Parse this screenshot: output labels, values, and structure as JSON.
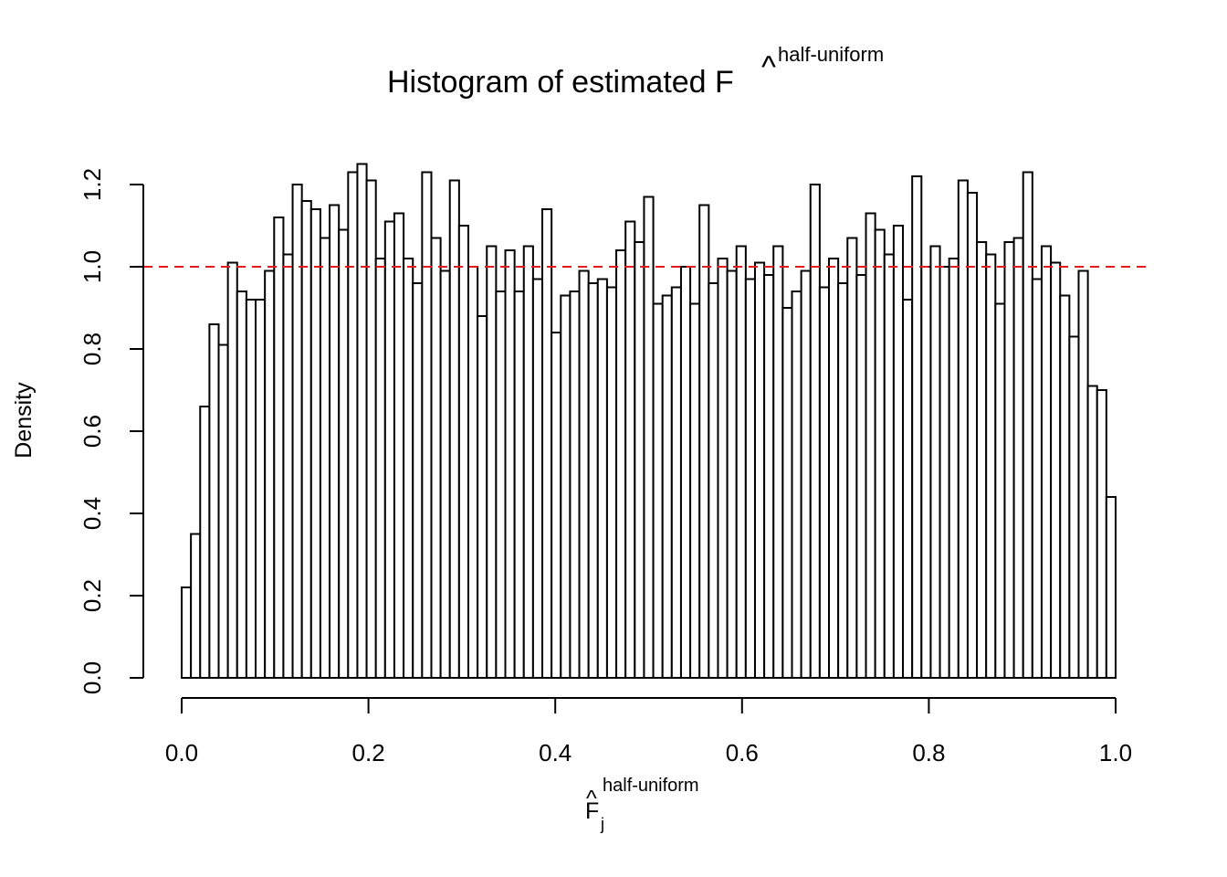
{
  "chart_data": {
    "type": "bar",
    "title": {
      "main": "Histogram of estimated F",
      "hat": "^",
      "superscript": "half-uniform"
    },
    "xlabel": {
      "symbol": "F",
      "hat": "^",
      "subscript": "j",
      "superscript": "half-uniform"
    },
    "ylabel": "Density",
    "xlim": [
      0,
      1
    ],
    "ylim": [
      0,
      1.25
    ],
    "x_ticks": [
      "0.0",
      "0.2",
      "0.4",
      "0.6",
      "0.8",
      "1.0"
    ],
    "y_ticks": [
      "0.0",
      "0.2",
      "0.4",
      "0.6",
      "0.8",
      "1.0",
      "1.2"
    ],
    "bin_width": 0.01,
    "values": [
      0.22,
      0.35,
      0.66,
      0.86,
      0.81,
      1.01,
      0.94,
      0.92,
      0.92,
      0.99,
      1.12,
      1.03,
      1.2,
      1.16,
      1.14,
      1.07,
      1.15,
      1.09,
      1.23,
      1.25,
      1.21,
      1.02,
      1.11,
      1.13,
      1.02,
      0.96,
      1.23,
      1.07,
      0.99,
      1.21,
      1.1,
      1.0,
      0.88,
      1.05,
      0.94,
      1.04,
      0.94,
      1.05,
      0.97,
      1.14,
      0.84,
      0.93,
      0.94,
      0.99,
      0.96,
      0.97,
      0.95,
      1.04,
      1.11,
      1.06,
      1.17,
      0.91,
      0.93,
      0.95,
      1.0,
      0.91,
      1.15,
      0.96,
      1.02,
      0.99,
      1.05,
      0.97,
      1.01,
      0.98,
      1.05,
      0.9,
      0.94,
      0.99,
      1.2,
      0.95,
      1.02,
      0.96,
      1.07,
      0.98,
      1.13,
      1.09,
      1.03,
      1.1,
      0.92,
      1.22,
      1.0,
      1.05,
      1.0,
      1.02,
      1.21,
      1.18,
      1.06,
      1.03,
      0.91,
      1.06,
      1.07,
      1.23,
      0.97,
      1.05,
      1.01,
      0.93,
      0.83,
      0.99,
      0.71,
      0.7,
      0.44
    ],
    "reference_line": {
      "y": 1.0,
      "style": "dashed",
      "color": "#e41a1c"
    },
    "grid": false,
    "legend": "none"
  }
}
